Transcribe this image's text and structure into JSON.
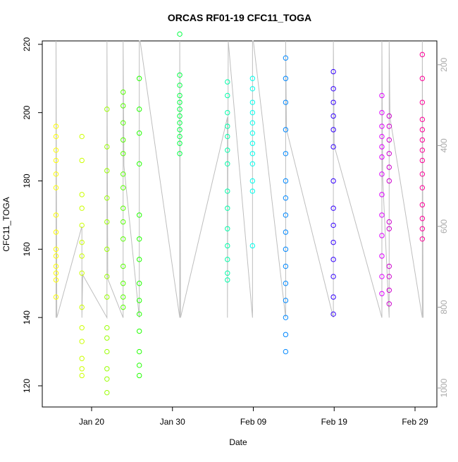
{
  "chart_data": {
    "type": "scatter",
    "title": "ORCAS RF01-19 CFC11_TOGA",
    "xlabel": "Date",
    "ylabel": "CFC11_TOGA",
    "xlim": [
      13.9,
      62.7
    ],
    "xticks": [
      {
        "value": 20,
        "label": "Jan 20"
      },
      {
        "value": 30,
        "label": "Jan 30"
      },
      {
        "value": 40,
        "label": "Feb 09"
      },
      {
        "value": 50,
        "label": "Feb 19"
      },
      {
        "value": 60,
        "label": "Feb 29"
      }
    ],
    "ylim": [
      113.8,
      221.0
    ],
    "yticks": [
      120,
      140,
      160,
      180,
      200,
      220
    ],
    "y2lim": [
      1047,
      141
    ],
    "y2ticks": [
      200,
      400,
      600,
      800,
      1000
    ],
    "series": [
      {
        "color": "#ffff00",
        "x": [
          15.6,
          15.6,
          15.6,
          15.6,
          15.6,
          15.6,
          15.6,
          15.6,
          15.6,
          15.6,
          15.6,
          15.6,
          15.6,
          15.6
        ],
        "values": [
          146,
          151,
          153,
          155,
          158,
          160,
          165,
          170,
          178,
          182,
          186,
          189,
          193,
          196
        ]
      },
      {
        "color": "#ccff00",
        "x": [
          18.8,
          18.8,
          18.8,
          18.8,
          18.8,
          18.8,
          18.8,
          18.8,
          18.8,
          18.8,
          18.8,
          18.8,
          18.8,
          18.8
        ],
        "values": [
          123,
          125,
          128,
          133,
          137,
          143,
          153,
          158,
          162,
          167,
          172,
          176,
          186,
          193
        ]
      },
      {
        "color": "#99ff00",
        "x": [
          21.9,
          21.9,
          21.9,
          21.9,
          21.9,
          21.9,
          21.9,
          21.9,
          21.9,
          21.9,
          21.9,
          21.9,
          21.9,
          21.9
        ],
        "values": [
          118,
          122,
          125,
          130,
          134,
          137,
          146,
          152,
          160,
          168,
          175,
          183,
          190,
          201
        ]
      },
      {
        "color": "#55ff00",
        "x": [
          23.9,
          23.9,
          23.9,
          23.9,
          23.9,
          23.9,
          23.9,
          23.9,
          23.9,
          23.9,
          23.9,
          23.9,
          23.9,
          23.9
        ],
        "values": [
          143,
          146,
          150,
          155,
          163,
          168,
          172,
          178,
          182,
          188,
          192,
          197,
          202,
          206
        ]
      },
      {
        "color": "#22ff00",
        "x": [
          25.9,
          25.9,
          25.9,
          25.9,
          25.9,
          25.9,
          25.9,
          25.9,
          25.9,
          25.9,
          25.9,
          25.9,
          25.9,
          25.9
        ],
        "values": [
          123,
          126,
          130,
          136,
          141,
          145,
          150,
          157,
          163,
          170,
          185,
          194,
          201,
          210
        ]
      },
      {
        "color": "#00ff44",
        "x": [
          30.9,
          30.9,
          30.9,
          30.9,
          30.9,
          30.9,
          30.9,
          30.9,
          30.9,
          30.9,
          30.9,
          30.9
        ],
        "values": [
          188,
          191,
          193,
          195,
          197,
          199,
          201,
          203,
          205,
          208,
          211,
          223
        ]
      },
      {
        "color": "#00ffaa",
        "x": [
          36.8,
          36.8,
          36.8,
          36.8,
          36.8,
          36.8,
          36.8,
          36.8,
          36.8,
          36.8,
          36.8,
          36.8,
          36.8,
          36.8
        ],
        "values": [
          151,
          153,
          157,
          161,
          166,
          172,
          177,
          185,
          189,
          193,
          196,
          200,
          205,
          209
        ]
      },
      {
        "color": "#00ffee",
        "x": [
          39.9,
          39.9,
          39.9,
          39.9,
          39.9,
          39.9,
          39.9,
          39.9,
          39.9,
          39.9,
          39.9,
          39.9
        ],
        "values": [
          161,
          177,
          180,
          185,
          188,
          191,
          194,
          197,
          200,
          203,
          207,
          210
        ]
      },
      {
        "color": "#0088ff",
        "x": [
          44.0,
          44.0,
          44.0,
          44.0,
          44.0,
          44.0,
          44.0,
          44.0,
          44.0,
          44.0,
          44.0,
          44.0,
          44.0,
          44.0,
          44.0,
          44.0
        ],
        "values": [
          130,
          135,
          140,
          145,
          150,
          155,
          160,
          165,
          170,
          175,
          180,
          188,
          195,
          203,
          210,
          216
        ]
      },
      {
        "color": "#3300ff",
        "x": [
          49.9,
          49.9,
          49.9,
          49.9,
          49.9,
          49.9,
          49.9,
          49.9,
          49.9,
          49.9,
          49.9,
          49.9,
          49.9,
          49.9
        ],
        "values": [
          141,
          146,
          152,
          157,
          162,
          167,
          172,
          180,
          190,
          195,
          199,
          203,
          207,
          212
        ]
      },
      {
        "color": "#dd00ff",
        "x": [
          55.9,
          55.9,
          55.9,
          55.9,
          55.9,
          55.9,
          55.9,
          55.9,
          55.9,
          55.9,
          55.9,
          55.9,
          55.9
        ],
        "values": [
          147,
          152,
          158,
          164,
          170,
          176,
          182,
          187,
          190,
          193,
          196,
          200,
          205
        ]
      },
      {
        "color": "#cc00cc",
        "x": [
          56.8,
          56.8,
          56.8,
          56.8,
          56.8,
          56.8,
          56.8,
          56.8,
          56.8,
          56.8,
          56.8,
          56.8
        ],
        "values": [
          144,
          148,
          152,
          155,
          166,
          168,
          180,
          184,
          188,
          192,
          196,
          199
        ]
      },
      {
        "color": "#ff0099",
        "x": [
          60.9,
          60.9,
          60.9,
          60.9,
          60.9,
          60.9,
          60.9,
          60.9,
          60.9,
          60.9,
          60.9,
          60.9,
          60.9,
          60.9
        ],
        "values": [
          163,
          166,
          169,
          173,
          178,
          182,
          186,
          189,
          192,
          195,
          198,
          203,
          210,
          217
        ]
      },
      {
        "color": "#bebebe",
        "axis": "y2",
        "x": [
          15.6,
          15.6,
          15.7,
          18.8,
          18.8,
          18.9,
          21.9,
          21.9,
          22.0,
          23.9,
          23.9,
          24.0,
          25.9,
          25.9,
          26.0,
          30.9,
          30.9,
          31.0,
          36.8,
          36.8,
          36.9,
          39.9,
          39.9,
          40.0,
          44.0,
          44.0,
          44.1,
          49.9,
          49.9,
          50.0,
          55.9,
          55.9,
          56.0,
          56.8,
          56.8,
          56.9,
          60.9,
          60.9,
          61.0
        ],
        "values": [
          826,
          141,
          826,
          600,
          826,
          720,
          826,
          141,
          730,
          826,
          141,
          450,
          826,
          141,
          141,
          826,
          141,
          826,
          330,
          826,
          141,
          826,
          141,
          141,
          826,
          141,
          360,
          826,
          141,
          400,
          826,
          141,
          480,
          826,
          141,
          330,
          826,
          141,
          826
        ]
      }
    ]
  }
}
